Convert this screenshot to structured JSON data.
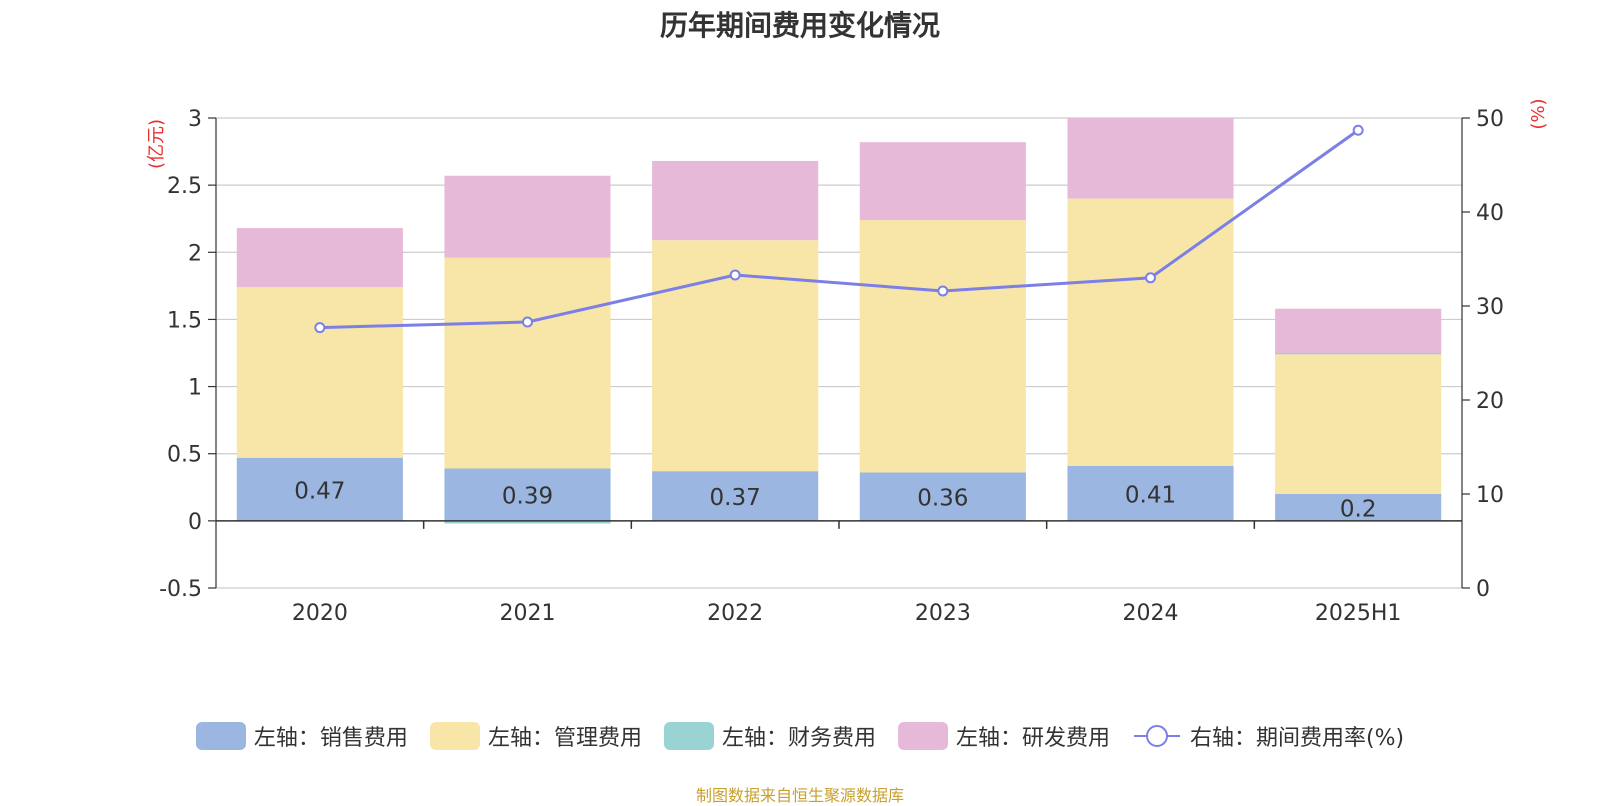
{
  "chart_data": {
    "type": "bar",
    "title": "历年期间费用变化情况",
    "categories": [
      "2020",
      "2021",
      "2022",
      "2023",
      "2024",
      "2025H1"
    ],
    "left_axis": {
      "unit": "(亿元)",
      "ticks": [
        "3",
        "2.5",
        "2",
        "1.5",
        "1",
        "0.5",
        "0",
        "-0.5"
      ],
      "range": [
        -0.5,
        3
      ]
    },
    "right_axis": {
      "unit": "(%)",
      "ticks": [
        "50",
        "40",
        "30",
        "20",
        "10",
        "0"
      ],
      "range": [
        0,
        50
      ]
    },
    "series": [
      {
        "name": "左轴：销售费用",
        "type": "bar",
        "axis": "left",
        "color": "#9bb6e0",
        "values": [
          0.47,
          0.39,
          0.37,
          0.36,
          0.41,
          0.2
        ],
        "labels": [
          "0.47",
          "0.39",
          "0.37",
          "0.36",
          "0.41",
          "0.2"
        ]
      },
      {
        "name": "左轴：管理费用",
        "type": "bar",
        "axis": "left",
        "color": "#f7e6a7",
        "values": [
          1.27,
          1.57,
          1.72,
          1.88,
          1.99,
          1.04
        ]
      },
      {
        "name": "左轴：财务费用",
        "type": "bar",
        "axis": "left",
        "color": "#99d3d4",
        "values": [
          0.0,
          -0.02,
          0.0,
          0.0,
          0.0,
          0.01
        ]
      },
      {
        "name": "左轴：研发费用",
        "type": "bar",
        "axis": "left",
        "color": "#e7b9d9",
        "values": [
          0.44,
          0.61,
          0.59,
          0.58,
          0.62,
          0.33
        ]
      },
      {
        "name": "右轴：期间费用率(%)",
        "type": "line",
        "axis": "right",
        "color": "#7b7fe6",
        "values": [
          27.7,
          28.3,
          33.3,
          31.6,
          33.0,
          48.7
        ]
      }
    ],
    "grid": true,
    "legend_position": "bottom"
  },
  "footer": {
    "source": "制图数据来自恒生聚源数据库"
  }
}
